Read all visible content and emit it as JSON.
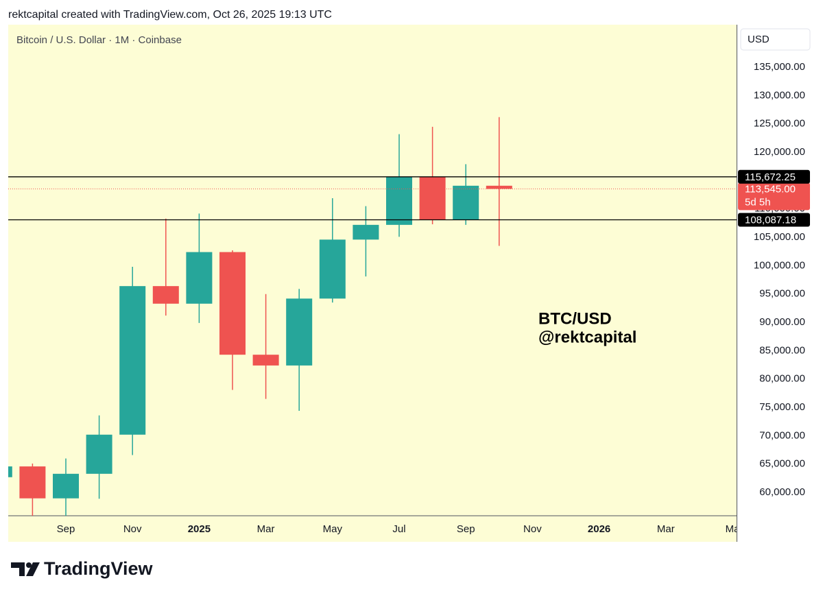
{
  "header": "rektcapital created with TradingView.com, Oct 26, 2025 19:13 UTC",
  "footer_brand": "TradingView",
  "chart_data": {
    "type": "candlestick",
    "title": "Bitcoin / U.S. Dollar · 1M · Coinbase",
    "currency": "USD",
    "categories": [
      null,
      null,
      "Sep",
      null,
      "Nov",
      null,
      "2025",
      null,
      "Mar",
      null,
      "May",
      null,
      "Jul",
      null,
      "Sep",
      null,
      "Nov",
      null,
      "2026",
      null,
      "Mar",
      null,
      "Ma"
    ],
    "open": [
      62700,
      64600,
      58970,
      63300,
      70200,
      96400,
      93300,
      102400,
      84300,
      82400,
      94200,
      104600,
      107200,
      115700,
      108100,
      114100,
      null,
      null,
      null,
      null,
      null,
      null,
      null
    ],
    "high": [
      70000,
      65100,
      66000,
      73600,
      99800,
      108300,
      109200,
      102700,
      95000,
      95900,
      111900,
      110500,
      123200,
      124500,
      117900,
      126200,
      null,
      null,
      null,
      null,
      null,
      null,
      null
    ],
    "low": [
      53500,
      49000,
      52550,
      58900,
      66600,
      91200,
      89900,
      78100,
      76500,
      74400,
      93500,
      98100,
      105100,
      107300,
      107200,
      103500,
      null,
      null,
      null,
      null,
      null,
      null,
      null
    ],
    "close": [
      64600,
      58970,
      63300,
      70200,
      96400,
      93300,
      102400,
      84300,
      82400,
      94200,
      104600,
      107200,
      115700,
      108100,
      114100,
      113545,
      null,
      null,
      null,
      null,
      null,
      null,
      null
    ],
    "up_color": "#26a69a",
    "down_color": "#ef5350",
    "ylim": [
      55900,
      142500
    ],
    "yticks": [
      {
        "value": 60000,
        "label": "60,000.00"
      },
      {
        "value": 65000,
        "label": "65,000.00"
      },
      {
        "value": 70000,
        "label": "70,000.00"
      },
      {
        "value": 75000,
        "label": "75,000.00"
      },
      {
        "value": 80000,
        "label": "80,000.00"
      },
      {
        "value": 85000,
        "label": "85,000.00"
      },
      {
        "value": 90000,
        "label": "90,000.00"
      },
      {
        "value": 95000,
        "label": "95,000.00"
      },
      {
        "value": 100000,
        "label": "100,000.00"
      },
      {
        "value": 105000,
        "label": "105,000.00"
      },
      {
        "value": 110000,
        "label": "110,000.00"
      },
      {
        "value": 115000,
        "label": "115,000.00"
      },
      {
        "value": 120000,
        "label": "120,000.00"
      },
      {
        "value": 125000,
        "label": "125,000.00"
      },
      {
        "value": 130000,
        "label": "130,000.00"
      },
      {
        "value": 135000,
        "label": "135,000.00"
      }
    ],
    "levels": [
      {
        "value": 115672.25,
        "label": "115,672.25"
      },
      {
        "value": 108087.18,
        "label": "108,087.18"
      }
    ],
    "last_price": {
      "value": 113545,
      "label": "113,545.00",
      "countdown": "5d 5h"
    },
    "annotations": [
      "BTC/USD",
      "@rektcapital"
    ],
    "grid": false
  }
}
